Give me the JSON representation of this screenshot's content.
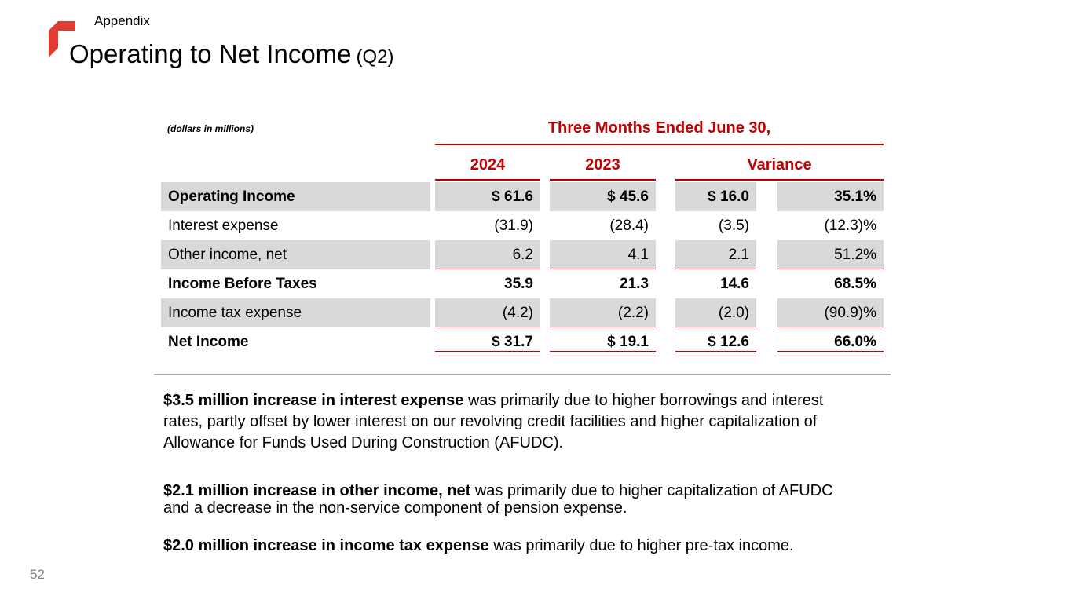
{
  "slide": {
    "eyebrow": "Appendix",
    "title": "Operating to Net Income",
    "title_suffix": "(Q2)",
    "page_number": "52"
  },
  "table": {
    "units_note": "(dollars in millions)",
    "header_span": "Three Months Ended June 30,",
    "columns": [
      "2024",
      "2023",
      "Variance"
    ],
    "rows": [
      {
        "label": "Operating Income",
        "bold": true,
        "shaded": true,
        "underline": "none",
        "values": [
          "$ 61.6",
          "$ 45.6",
          "$ 16.0",
          "35.1%"
        ]
      },
      {
        "label": "Interest expense",
        "bold": false,
        "shaded": false,
        "underline": "none",
        "values": [
          "(31.9)",
          "(28.4)",
          "(3.5)",
          "(12.3)%"
        ]
      },
      {
        "label": "Other income, net",
        "bold": false,
        "shaded": true,
        "underline": "single",
        "values": [
          "6.2",
          "4.1",
          "2.1",
          "51.2%"
        ]
      },
      {
        "label": "Income Before Taxes",
        "bold": true,
        "shaded": false,
        "underline": "none",
        "values": [
          "35.9",
          "21.3",
          "14.6",
          "68.5%"
        ]
      },
      {
        "label": "Income tax expense",
        "bold": false,
        "shaded": true,
        "underline": "single",
        "values": [
          "(4.2)",
          "(2.2)",
          "(2.0)",
          "(90.9)%"
        ]
      },
      {
        "label": "Net Income",
        "bold": true,
        "shaded": false,
        "underline": "double",
        "values": [
          "$ 31.7",
          "$ 19.1",
          "$ 12.6",
          "66.0%"
        ]
      }
    ]
  },
  "notes": [
    {
      "lead": "$3.5 million increase in interest expense",
      "rest": " was primarily due to higher borrowings and interest rates, partly offset by lower interest on our revolving credit facilities and higher capitalization of Allowance for Funds Used During Construction (AFUDC)."
    },
    {
      "lead": "$2.1 million increase in other income, net",
      "rest": " was primarily due to higher capitalization of AFUDC and a decrease in the non-service component of pension expense."
    },
    {
      "lead": "$2.0 million increase in income tax expense",
      "rest": " was primarily due to higher pre-tax income."
    }
  ],
  "colors": {
    "accent_red": "#C00000",
    "row_shade": "#D9D9D9",
    "divider_gray": "#A6A6A6",
    "page_gray": "#808080",
    "logo_red": "#E03C31"
  }
}
